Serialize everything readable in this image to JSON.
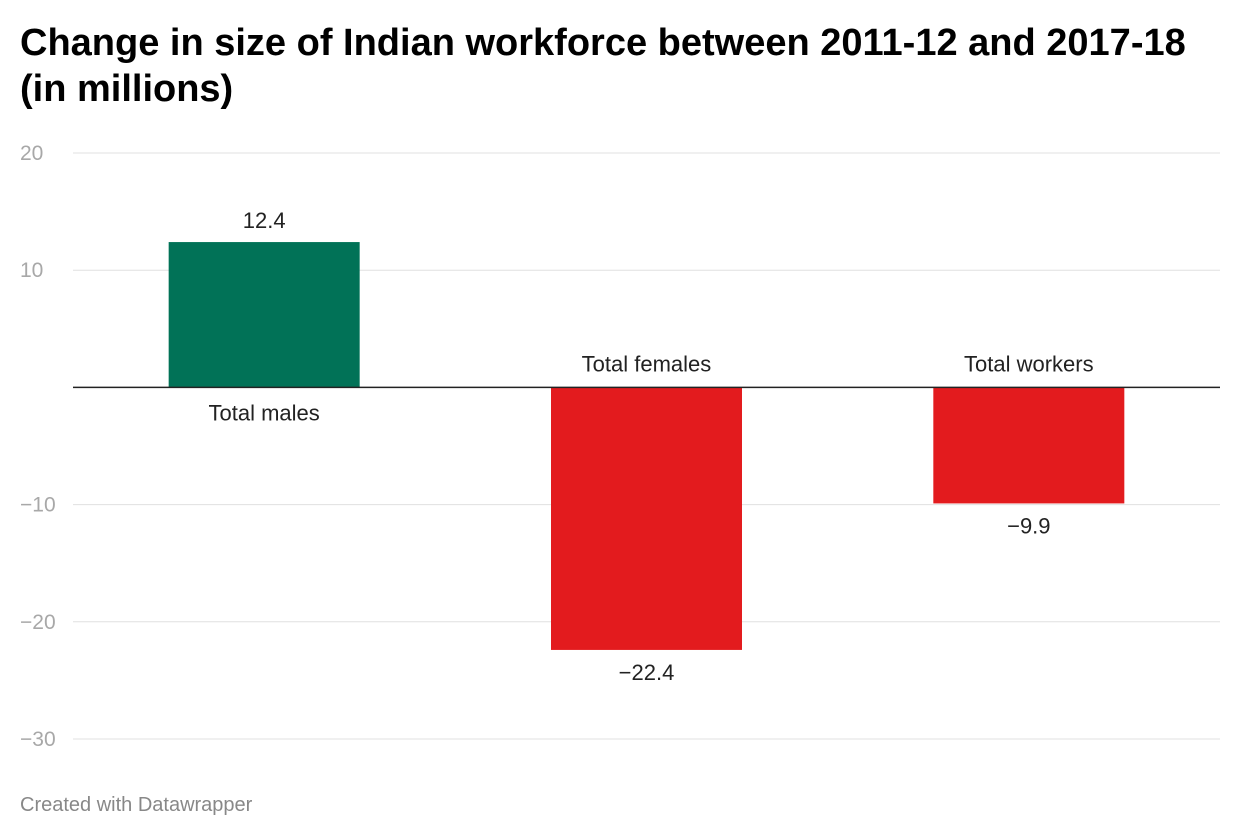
{
  "title": "Change in size of Indian workforce between 2011-12 and 2017-18 (in millions)",
  "footer": "Created with Datawrapper",
  "colors": {
    "positive": "#017257",
    "negative": "#e31b1e",
    "grid": "#e0e0e0",
    "axis_tick": "#a8a8a8",
    "baseline": "#222222",
    "label": "#222222"
  },
  "chart_data": {
    "type": "bar",
    "categories": [
      "Total males",
      "Total females",
      "Total workers"
    ],
    "values": [
      12.4,
      -22.4,
      -9.9
    ],
    "value_labels": [
      "12.4",
      "−22.4",
      "−9.9"
    ],
    "yticks": [
      20,
      10,
      -10,
      -20,
      -30
    ],
    "ytick_labels": [
      "20",
      "10",
      "−10",
      "−20",
      "−30"
    ],
    "ylim": [
      -30,
      20
    ],
    "grid": true,
    "legend": "none",
    "xlabel": "",
    "ylabel": ""
  }
}
